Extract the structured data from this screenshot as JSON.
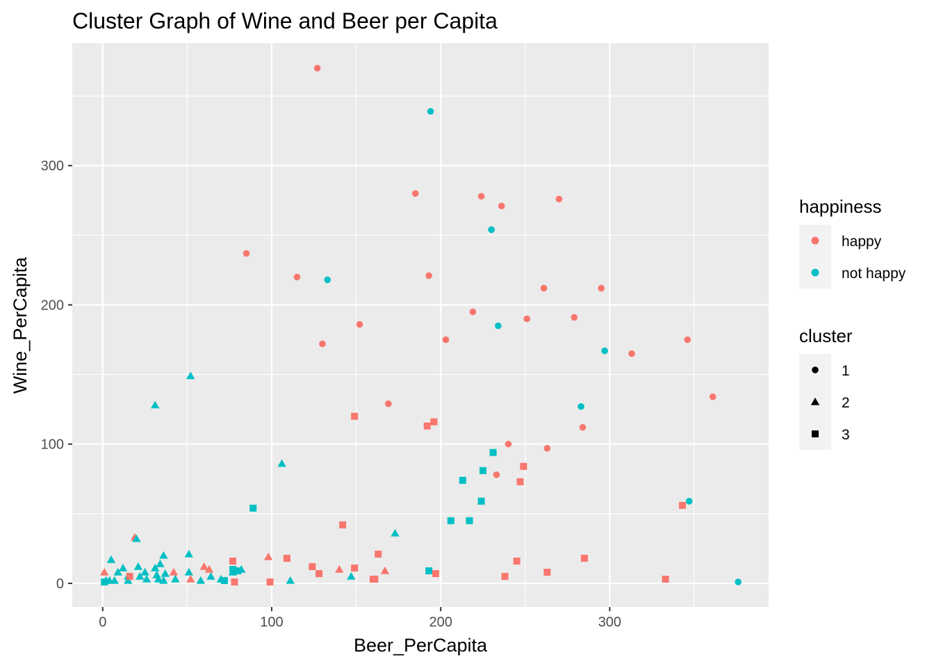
{
  "chart_data": {
    "type": "scatter",
    "title": "Cluster Graph of Wine and Beer per Capita",
    "xlabel": "Beer_PerCapita",
    "ylabel": "Wine_PerCapita",
    "xlim": [
      -18,
      394
    ],
    "ylim": [
      -17,
      388
    ],
    "x_ticks": [
      0,
      100,
      200,
      300
    ],
    "y_ticks": [
      0,
      100,
      200,
      300
    ],
    "x_tick_labels": [
      "0",
      "100",
      "200",
      "300"
    ],
    "y_tick_labels": [
      "0",
      "100",
      "200",
      "300"
    ],
    "grid": true,
    "background": "#ebebeb",
    "legend_placement": "right",
    "colors": {
      "happy": "#f8766d",
      "not happy": "#00bfc4"
    },
    "legends": [
      {
        "title": "happiness",
        "items": [
          {
            "label": "happy",
            "value": "happy",
            "kind": "color"
          },
          {
            "label": "not happy",
            "value": "not happy",
            "kind": "color"
          }
        ]
      },
      {
        "title": "cluster",
        "items": [
          {
            "label": "1",
            "value": 1,
            "kind": "shape"
          },
          {
            "label": "2",
            "value": 2,
            "kind": "shape"
          },
          {
            "label": "3",
            "value": 3,
            "kind": "shape"
          }
        ]
      }
    ],
    "points": [
      {
        "x": 127,
        "y": 370,
        "happiness": "happy",
        "cluster": 1
      },
      {
        "x": 194,
        "y": 339,
        "happiness": "not happy",
        "cluster": 1
      },
      {
        "x": 185,
        "y": 280,
        "happiness": "happy",
        "cluster": 1
      },
      {
        "x": 224,
        "y": 278,
        "happiness": "happy",
        "cluster": 1
      },
      {
        "x": 270,
        "y": 276,
        "happiness": "happy",
        "cluster": 1
      },
      {
        "x": 236,
        "y": 271,
        "happiness": "happy",
        "cluster": 1
      },
      {
        "x": 230,
        "y": 254,
        "happiness": "not happy",
        "cluster": 1
      },
      {
        "x": 85,
        "y": 237,
        "happiness": "happy",
        "cluster": 1
      },
      {
        "x": 115,
        "y": 220,
        "happiness": "happy",
        "cluster": 1
      },
      {
        "x": 193,
        "y": 221,
        "happiness": "happy",
        "cluster": 1
      },
      {
        "x": 133,
        "y": 218,
        "happiness": "not happy",
        "cluster": 1
      },
      {
        "x": 261,
        "y": 212,
        "happiness": "happy",
        "cluster": 1
      },
      {
        "x": 295,
        "y": 212,
        "happiness": "happy",
        "cluster": 1
      },
      {
        "x": 219,
        "y": 195,
        "happiness": "happy",
        "cluster": 1
      },
      {
        "x": 279,
        "y": 191,
        "happiness": "happy",
        "cluster": 1
      },
      {
        "x": 251,
        "y": 190,
        "happiness": "happy",
        "cluster": 1
      },
      {
        "x": 152,
        "y": 186,
        "happiness": "happy",
        "cluster": 1
      },
      {
        "x": 234,
        "y": 185,
        "happiness": "not happy",
        "cluster": 1
      },
      {
        "x": 203,
        "y": 175,
        "happiness": "happy",
        "cluster": 1
      },
      {
        "x": 346,
        "y": 175,
        "happiness": "happy",
        "cluster": 1
      },
      {
        "x": 130,
        "y": 172,
        "happiness": "happy",
        "cluster": 1
      },
      {
        "x": 297,
        "y": 167,
        "happiness": "not happy",
        "cluster": 1
      },
      {
        "x": 313,
        "y": 165,
        "happiness": "happy",
        "cluster": 1
      },
      {
        "x": 361,
        "y": 134,
        "happiness": "happy",
        "cluster": 1
      },
      {
        "x": 169,
        "y": 129,
        "happiness": "happy",
        "cluster": 1
      },
      {
        "x": 283,
        "y": 127,
        "happiness": "not happy",
        "cluster": 1
      },
      {
        "x": 284,
        "y": 112,
        "happiness": "happy",
        "cluster": 1
      },
      {
        "x": 240,
        "y": 100,
        "happiness": "happy",
        "cluster": 1
      },
      {
        "x": 263,
        "y": 97,
        "happiness": "happy",
        "cluster": 1
      },
      {
        "x": 233,
        "y": 78,
        "happiness": "happy",
        "cluster": 1
      },
      {
        "x": 347,
        "y": 59,
        "happiness": "not happy",
        "cluster": 1
      },
      {
        "x": 376,
        "y": 1,
        "happiness": "not happy",
        "cluster": 1
      },
      {
        "x": 52,
        "y": 149,
        "happiness": "not happy",
        "cluster": 2
      },
      {
        "x": 31,
        "y": 128,
        "happiness": "not happy",
        "cluster": 2
      },
      {
        "x": 106,
        "y": 86,
        "happiness": "not happy",
        "cluster": 2
      },
      {
        "x": 173,
        "y": 36,
        "happiness": "not happy",
        "cluster": 2
      },
      {
        "x": 19,
        "y": 33,
        "happiness": "happy",
        "cluster": 2
      },
      {
        "x": 20,
        "y": 32,
        "happiness": "not happy",
        "cluster": 2
      },
      {
        "x": 51,
        "y": 21,
        "happiness": "not happy",
        "cluster": 2
      },
      {
        "x": 36,
        "y": 20,
        "happiness": "not happy",
        "cluster": 2
      },
      {
        "x": 98,
        "y": 19,
        "happiness": "happy",
        "cluster": 2
      },
      {
        "x": 5,
        "y": 17,
        "happiness": "not happy",
        "cluster": 2
      },
      {
        "x": 34,
        "y": 14,
        "happiness": "not happy",
        "cluster": 2
      },
      {
        "x": 21,
        "y": 12,
        "happiness": "not happy",
        "cluster": 2
      },
      {
        "x": 60,
        "y": 12,
        "happiness": "happy",
        "cluster": 2
      },
      {
        "x": 12,
        "y": 11,
        "happiness": "not happy",
        "cluster": 2
      },
      {
        "x": 31,
        "y": 11,
        "happiness": "not happy",
        "cluster": 2
      },
      {
        "x": 63,
        "y": 10,
        "happiness": "happy",
        "cluster": 2
      },
      {
        "x": 82,
        "y": 10,
        "happiness": "not happy",
        "cluster": 2
      },
      {
        "x": 140,
        "y": 10,
        "happiness": "happy",
        "cluster": 2
      },
      {
        "x": 1,
        "y": 8,
        "happiness": "happy",
        "cluster": 2
      },
      {
        "x": 9,
        "y": 8,
        "happiness": "not happy",
        "cluster": 2
      },
      {
        "x": 25,
        "y": 8,
        "happiness": "not happy",
        "cluster": 2
      },
      {
        "x": 42,
        "y": 8,
        "happiness": "happy",
        "cluster": 2
      },
      {
        "x": 51,
        "y": 8,
        "happiness": "not happy",
        "cluster": 2
      },
      {
        "x": 77,
        "y": 8,
        "happiness": "not happy",
        "cluster": 2
      },
      {
        "x": 167,
        "y": 9,
        "happiness": "happy",
        "cluster": 2
      },
      {
        "x": 32,
        "y": 6,
        "happiness": "not happy",
        "cluster": 2
      },
      {
        "x": 37,
        "y": 7,
        "happiness": "not happy",
        "cluster": 2
      },
      {
        "x": 15,
        "y": 5,
        "happiness": "not happy",
        "cluster": 2
      },
      {
        "x": 22,
        "y": 5,
        "happiness": "not happy",
        "cluster": 2
      },
      {
        "x": 64,
        "y": 5,
        "happiness": "not happy",
        "cluster": 2
      },
      {
        "x": 147,
        "y": 5,
        "happiness": "not happy",
        "cluster": 2
      },
      {
        "x": 26,
        "y": 3,
        "happiness": "not happy",
        "cluster": 2
      },
      {
        "x": 33,
        "y": 3,
        "happiness": "not happy",
        "cluster": 2
      },
      {
        "x": 43,
        "y": 3,
        "happiness": "not happy",
        "cluster": 2
      },
      {
        "x": 52,
        "y": 3,
        "happiness": "happy",
        "cluster": 2
      },
      {
        "x": 70,
        "y": 3,
        "happiness": "not happy",
        "cluster": 2
      },
      {
        "x": 2,
        "y": 2,
        "happiness": "not happy",
        "cluster": 2
      },
      {
        "x": 4,
        "y": 2,
        "happiness": "not happy",
        "cluster": 2
      },
      {
        "x": 7,
        "y": 2,
        "happiness": "not happy",
        "cluster": 2
      },
      {
        "x": 15,
        "y": 2,
        "happiness": "not happy",
        "cluster": 2
      },
      {
        "x": 36,
        "y": 2,
        "happiness": "not happy",
        "cluster": 2
      },
      {
        "x": 58,
        "y": 2,
        "happiness": "not happy",
        "cluster": 2
      },
      {
        "x": 111,
        "y": 2,
        "happiness": "not happy",
        "cluster": 2
      },
      {
        "x": 149,
        "y": 120,
        "happiness": "happy",
        "cluster": 3
      },
      {
        "x": 196,
        "y": 116,
        "happiness": "happy",
        "cluster": 3
      },
      {
        "x": 192,
        "y": 113,
        "happiness": "happy",
        "cluster": 3
      },
      {
        "x": 231,
        "y": 94,
        "happiness": "not happy",
        "cluster": 3
      },
      {
        "x": 249,
        "y": 84,
        "happiness": "happy",
        "cluster": 3
      },
      {
        "x": 225,
        "y": 81,
        "happiness": "not happy",
        "cluster": 3
      },
      {
        "x": 213,
        "y": 74,
        "happiness": "not happy",
        "cluster": 3
      },
      {
        "x": 247,
        "y": 73,
        "happiness": "happy",
        "cluster": 3
      },
      {
        "x": 224,
        "y": 59,
        "happiness": "not happy",
        "cluster": 3
      },
      {
        "x": 343,
        "y": 56,
        "happiness": "happy",
        "cluster": 3
      },
      {
        "x": 89,
        "y": 54,
        "happiness": "not happy",
        "cluster": 3
      },
      {
        "x": 206,
        "y": 45,
        "happiness": "not happy",
        "cluster": 3
      },
      {
        "x": 217,
        "y": 45,
        "happiness": "not happy",
        "cluster": 3
      },
      {
        "x": 142,
        "y": 42,
        "happiness": "happy",
        "cluster": 3
      },
      {
        "x": 163,
        "y": 21,
        "happiness": "happy",
        "cluster": 3
      },
      {
        "x": 109,
        "y": 18,
        "happiness": "happy",
        "cluster": 3
      },
      {
        "x": 285,
        "y": 18,
        "happiness": "happy",
        "cluster": 3
      },
      {
        "x": 77,
        "y": 16,
        "happiness": "happy",
        "cluster": 3
      },
      {
        "x": 245,
        "y": 16,
        "happiness": "happy",
        "cluster": 3
      },
      {
        "x": 124,
        "y": 12,
        "happiness": "happy",
        "cluster": 3
      },
      {
        "x": 149,
        "y": 11,
        "happiness": "happy",
        "cluster": 3
      },
      {
        "x": 193,
        "y": 9,
        "happiness": "not happy",
        "cluster": 3
      },
      {
        "x": 77,
        "y": 10,
        "happiness": "not happy",
        "cluster": 3
      },
      {
        "x": 80,
        "y": 9,
        "happiness": "not happy",
        "cluster": 3
      },
      {
        "x": 128,
        "y": 7,
        "happiness": "happy",
        "cluster": 3
      },
      {
        "x": 197,
        "y": 7,
        "happiness": "happy",
        "cluster": 3
      },
      {
        "x": 263,
        "y": 8,
        "happiness": "happy",
        "cluster": 3
      },
      {
        "x": 16,
        "y": 5,
        "happiness": "happy",
        "cluster": 3
      },
      {
        "x": 238,
        "y": 5,
        "happiness": "happy",
        "cluster": 3
      },
      {
        "x": 161,
        "y": 3,
        "happiness": "happy",
        "cluster": 3
      },
      {
        "x": 160,
        "y": 3,
        "happiness": "happy",
        "cluster": 3
      },
      {
        "x": 333,
        "y": 3,
        "happiness": "happy",
        "cluster": 3
      },
      {
        "x": 72,
        "y": 2,
        "happiness": "not happy",
        "cluster": 3
      },
      {
        "x": 78,
        "y": 1,
        "happiness": "happy",
        "cluster": 3
      },
      {
        "x": 99,
        "y": 1,
        "happiness": "happy",
        "cluster": 3
      },
      {
        "x": 1,
        "y": 1,
        "happiness": "not happy",
        "cluster": 3
      }
    ]
  }
}
